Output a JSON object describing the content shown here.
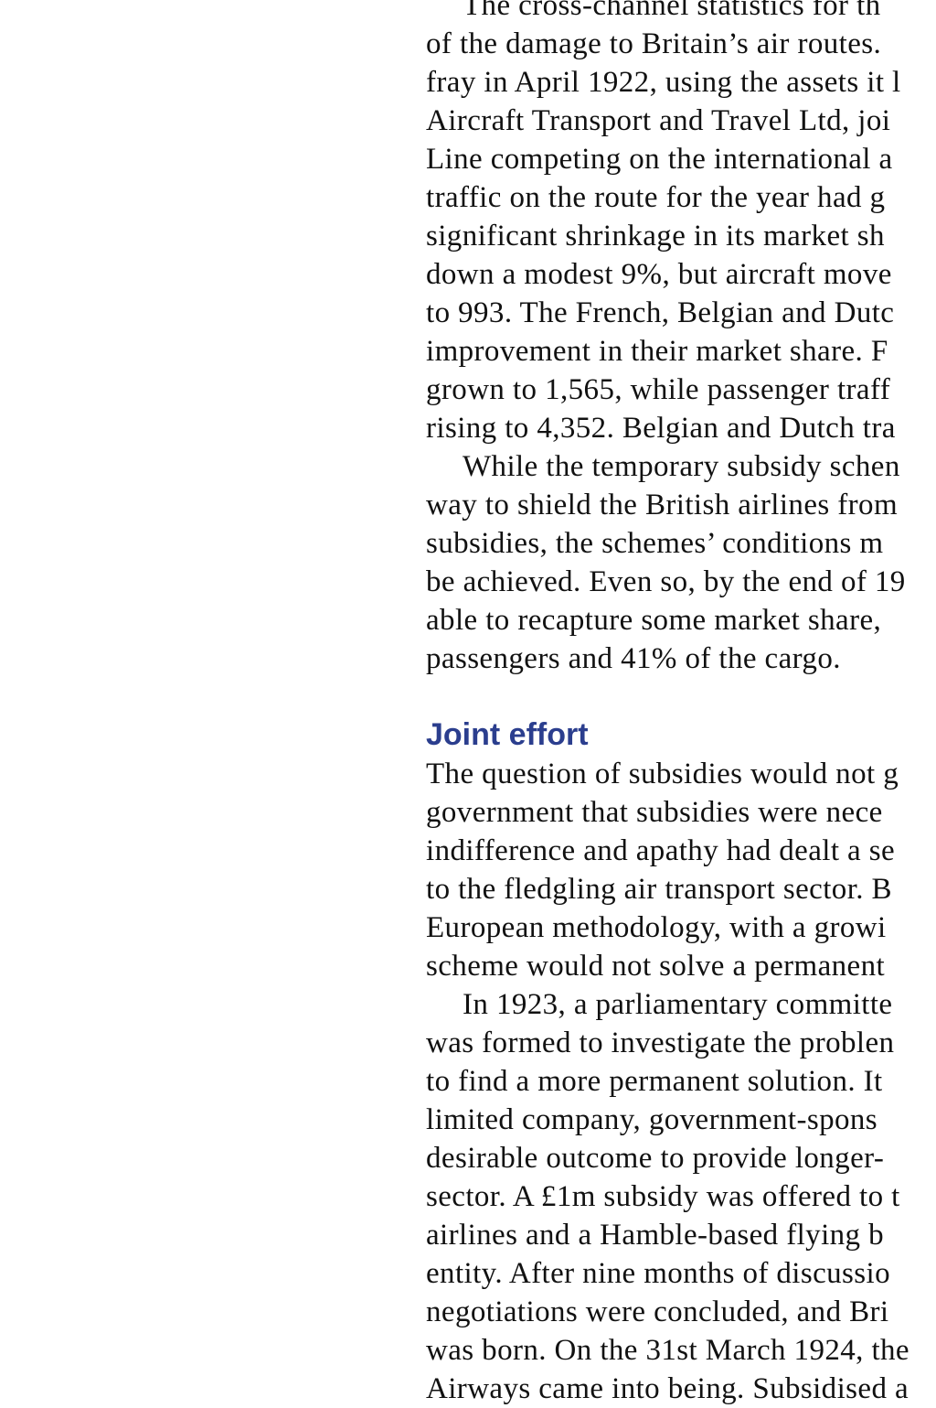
{
  "block1": [
    {
      "text": "The cross-channel statistics for th",
      "indent": true
    },
    {
      "text": "of the damage to Britain’s air routes. ",
      "indent": false
    },
    {
      "text": "fray in April 1922, using the assets it l",
      "indent": false
    },
    {
      "text": "Aircraft Transport and Travel Ltd, joi",
      "indent": false
    },
    {
      "text": "Line competing on the international a",
      "indent": false
    },
    {
      "text": "traffic on the route for the year had g",
      "indent": false
    },
    {
      "text": "significant shrinkage in its market sh",
      "indent": false
    },
    {
      "text": "down a modest 9%, but aircraft move",
      "indent": false
    },
    {
      "text": "to 993. The French, Belgian and Dutc",
      "indent": false
    },
    {
      "text": "improvement in their market share. F",
      "indent": false
    },
    {
      "text": "grown to 1,565, while passenger traff",
      "indent": false
    },
    {
      "text": "rising to 4,352. Belgian and Dutch tra",
      "indent": false
    },
    {
      "text": "While the temporary subsidy schen",
      "indent": true
    },
    {
      "text": "way to shield the British airlines from",
      "indent": false
    },
    {
      "text": "subsidies, the schemes’ conditions m",
      "indent": false
    },
    {
      "text": "be achieved. Even so, by the end of 19",
      "indent": false
    },
    {
      "text": "able to recapture some market share,",
      "indent": false
    },
    {
      "text": "passengers and 41% of the cargo.",
      "indent": false
    }
  ],
  "heading": "Joint effort",
  "heading_color": "#2b3e8e",
  "block2": [
    {
      "text": "The question of subsidies would not g",
      "indent": false
    },
    {
      "text": "government that subsidies were nece",
      "indent": false
    },
    {
      "text": "indifference and apathy had dealt a se",
      "indent": false
    },
    {
      "text": "to the fledgling air transport sector. B",
      "indent": false
    },
    {
      "text": "European methodology, with a growi",
      "indent": false
    },
    {
      "text": "scheme would not solve a permanent",
      "indent": false
    },
    {
      "text": "In 1923, a parliamentary committe",
      "indent": true
    },
    {
      "text": "was formed to investigate the problen",
      "indent": false
    },
    {
      "text": "to find a more permanent solution. It",
      "indent": false
    },
    {
      "text": "limited company, government-spons",
      "indent": false
    },
    {
      "text": "desirable outcome to provide longer-",
      "indent": false
    },
    {
      "text": "sector. A £1m subsidy was offered to t",
      "indent": false
    },
    {
      "text": "airlines and a Hamble-based flying b",
      "indent": false
    },
    {
      "text": "entity. After nine months of discussio",
      "indent": false
    },
    {
      "text": "negotiations were concluded, and Bri",
      "indent": false
    },
    {
      "text": "was born. On the 31st March 1924, the",
      "indent": false
    },
    {
      "text": "Airways came into being. Subsidised a",
      "indent": false
    }
  ]
}
